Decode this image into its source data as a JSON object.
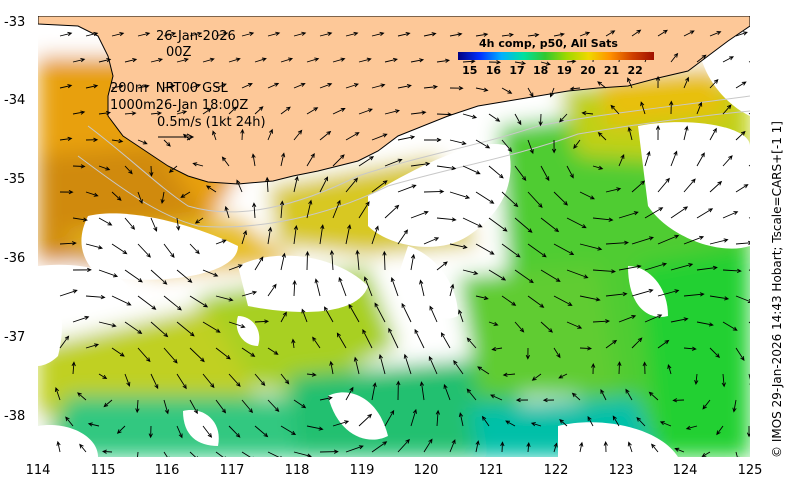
{
  "map": {
    "date": "26-Jan-2026",
    "hour": "00Z",
    "depth_line_1": "200m  NRT00 GSL",
    "depth_line_2": "1000m26-Jan 18:00Z",
    "current_scale": "0.5m/s (1kt 24h)",
    "colorbar_title": "4h comp, p50, All Sats",
    "colorbar_ticks": [
      "15",
      "16",
      "17",
      "18",
      "19",
      "20",
      "21",
      "22"
    ],
    "colorbar_range": [
      14.5,
      22.8
    ],
    "colorbar_colors": [
      "#00007f",
      "#0030ff",
      "#00b0ff",
      "#00e0a0",
      "#30c830",
      "#a0d800",
      "#f0d800",
      "#ff9000",
      "#d04000",
      "#a01000"
    ],
    "credit": "© IMOS 29-Jan-2026 14:43 Hobart; Tscale=CARS+[-1 1]",
    "lon_ticks": [
      "114",
      "115",
      "116",
      "117",
      "118",
      "119",
      "120",
      "121",
      "122",
      "123",
      "124",
      "125"
    ],
    "lat_ticks": [
      "-33",
      "-34",
      "-35",
      "-36",
      "-37",
      "-38"
    ],
    "lon_range": [
      114,
      125
    ],
    "lat_range": [
      -38.5,
      -33
    ],
    "land_color": "#fdc898"
  }
}
